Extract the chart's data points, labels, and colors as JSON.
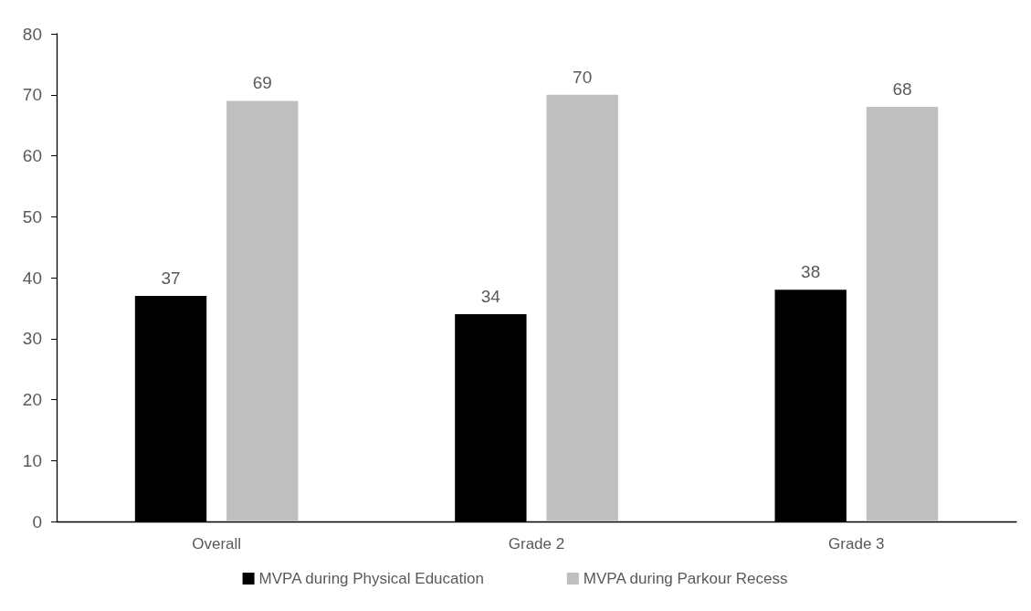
{
  "chart_data": {
    "type": "bar",
    "categories": [
      "Overall",
      "Grade 2",
      "Grade 3"
    ],
    "series": [
      {
        "name": "MVPA during Physical Education",
        "color": "#000000",
        "values": [
          37,
          34,
          38
        ]
      },
      {
        "name": "MVPA during Parkour Recess",
        "color": "#bfbfbf",
        "values": [
          69,
          70,
          68
        ]
      }
    ],
    "ylim": [
      0,
      80
    ],
    "yticks": [
      0,
      10,
      20,
      30,
      40,
      50,
      60,
      70,
      80
    ],
    "grid": false,
    "legend": "bottom",
    "data_labels": true
  }
}
